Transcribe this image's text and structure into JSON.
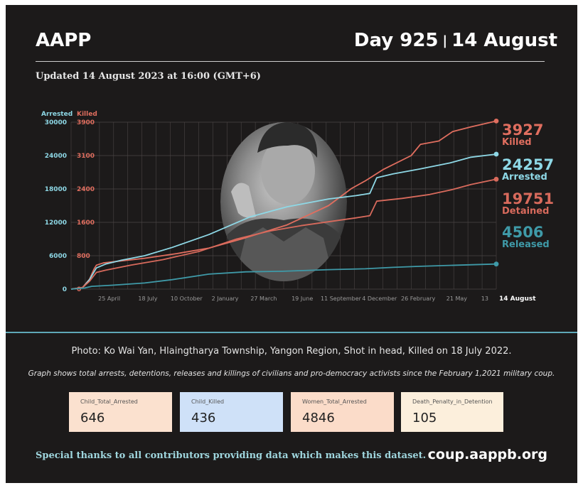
{
  "header": {
    "brand": "AAPP",
    "day": "Day 925",
    "separator": "|",
    "date": "14 August",
    "updated": "Updated 14 August 2023 at 16:00 (GMT+6)"
  },
  "chart_data": {
    "type": "line",
    "title": "",
    "y_left_label": "Arrested",
    "y_right_label": "Killed",
    "ylim_arrested": [
      0,
      30000
    ],
    "ylim_killed": [
      0,
      3900
    ],
    "ticks_arrested": [
      "30000",
      "24000",
      "18000",
      "12000",
      "6000",
      "0"
    ],
    "ticks_killed": [
      "3900",
      "3100",
      "2400",
      "1600",
      "800",
      "0"
    ],
    "x_tick_labels": [
      "25 April",
      "18 July",
      "10 October",
      "2 January",
      "27 March",
      "19 June",
      "11 September",
      "4 December",
      "26 February",
      "21 May",
      "13",
      "14 August"
    ],
    "x_range_days": [
      0,
      925
    ],
    "x_tick_days": [
      83,
      167,
      251,
      335,
      419,
      503,
      587,
      671,
      755,
      839,
      900,
      925
    ],
    "colors": {
      "killed": "#e06e5f",
      "arrested": "#8ed8e6",
      "detained": "#d86a5c",
      "released": "#3f9aa8"
    },
    "series": [
      {
        "name": "Killed",
        "axis": "killed",
        "points": [
          [
            0,
            0
          ],
          [
            25,
            40
          ],
          [
            40,
            230
          ],
          [
            50,
            470
          ],
          [
            55,
            560
          ],
          [
            70,
            610
          ],
          [
            110,
            660
          ],
          [
            160,
            720
          ],
          [
            230,
            830
          ],
          [
            300,
            960
          ],
          [
            380,
            1200
          ],
          [
            470,
            1500
          ],
          [
            560,
            1950
          ],
          [
            610,
            2350
          ],
          [
            640,
            2530
          ],
          [
            680,
            2800
          ],
          [
            740,
            3120
          ],
          [
            760,
            3380
          ],
          [
            800,
            3460
          ],
          [
            830,
            3680
          ],
          [
            870,
            3790
          ],
          [
            925,
            3927
          ]
        ]
      },
      {
        "name": "Arrested",
        "axis": "arrested",
        "points": [
          [
            0,
            0
          ],
          [
            25,
            250
          ],
          [
            40,
            1700
          ],
          [
            55,
            3800
          ],
          [
            75,
            4500
          ],
          [
            110,
            5200
          ],
          [
            160,
            6000
          ],
          [
            220,
            7500
          ],
          [
            300,
            9800
          ],
          [
            390,
            13000
          ],
          [
            470,
            14800
          ],
          [
            560,
            16200
          ],
          [
            620,
            16800
          ],
          [
            650,
            17200
          ],
          [
            665,
            20000
          ],
          [
            700,
            20700
          ],
          [
            760,
            21600
          ],
          [
            825,
            22700
          ],
          [
            870,
            23700
          ],
          [
            925,
            24257
          ]
        ]
      },
      {
        "name": "Detained",
        "axis": "arrested",
        "points": [
          [
            0,
            0
          ],
          [
            25,
            300
          ],
          [
            40,
            1400
          ],
          [
            55,
            3000
          ],
          [
            75,
            3400
          ],
          [
            130,
            4300
          ],
          [
            200,
            5300
          ],
          [
            280,
            6800
          ],
          [
            360,
            9000
          ],
          [
            430,
            10400
          ],
          [
            500,
            11400
          ],
          [
            560,
            12100
          ],
          [
            620,
            12800
          ],
          [
            650,
            13200
          ],
          [
            665,
            15800
          ],
          [
            720,
            16300
          ],
          [
            780,
            17000
          ],
          [
            830,
            17900
          ],
          [
            870,
            18800
          ],
          [
            925,
            19751
          ]
        ]
      },
      {
        "name": "Released",
        "axis": "arrested",
        "points": [
          [
            0,
            0
          ],
          [
            30,
            200
          ],
          [
            45,
            500
          ],
          [
            90,
            700
          ],
          [
            160,
            1100
          ],
          [
            220,
            1700
          ],
          [
            300,
            2700
          ],
          [
            380,
            3100
          ],
          [
            460,
            3200
          ],
          [
            560,
            3500
          ],
          [
            640,
            3650
          ],
          [
            700,
            3900
          ],
          [
            760,
            4100
          ],
          [
            840,
            4300
          ],
          [
            925,
            4506
          ]
        ]
      }
    ],
    "end_labels": [
      {
        "value": "3927",
        "name": "Killed"
      },
      {
        "value": "24257",
        "name": "Arrested"
      },
      {
        "value": "19751",
        "name": "Detained"
      },
      {
        "value": "4506",
        "name": "Released"
      }
    ]
  },
  "photo_caption": "Photo: Ko Wai Yan, Hlaingtharya Township, Yangon Region, Shot in head, Killed on 18 July 2022.",
  "graph_note": "Graph shows total arrests, detentions, releases and killings of civilians and pro-democracy activists since the February 1,2021 military coup.",
  "stats": [
    {
      "label": "Child_Total_Arrested",
      "value": "646",
      "bg": "#fbe1cf"
    },
    {
      "label": "Child_Killed",
      "value": "436",
      "bg": "#cfe1f8"
    },
    {
      "label": "Women_Total_Arrested",
      "value": "4846",
      "bg": "#fbdcc9"
    },
    {
      "label": "Death_Penalty_in_Detention",
      "value": "105",
      "bg": "#fcefdc"
    }
  ],
  "footer": {
    "thanks": "Special thanks to all contributors providing data which makes this dataset.",
    "site": "coup.aappb.org"
  }
}
